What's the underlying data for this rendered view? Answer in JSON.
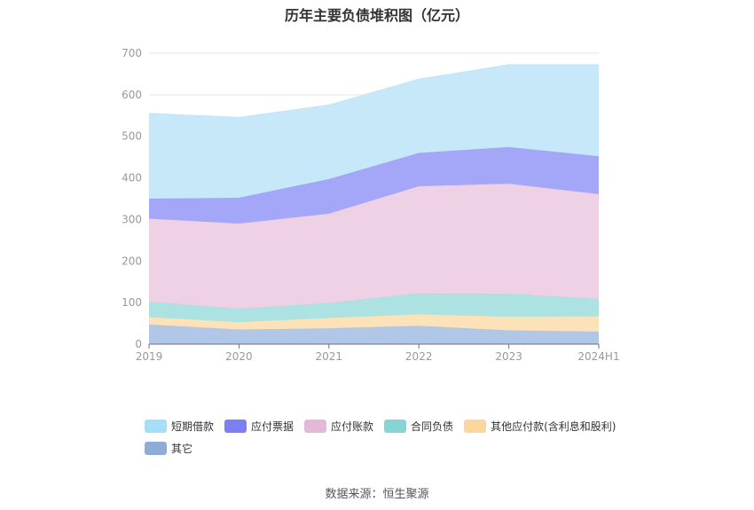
{
  "title": "历年主要负债堆积图（亿元）",
  "source": "数据来源：恒生聚源",
  "colors": {
    "短期借款": "#c3e7f9",
    "应付票据": "#9fa2f7",
    "应付账款": "#edcfe4",
    "合同负债": "#a8e0df",
    "其他应付款(含利息和股利)": "#fbe0b4",
    "其它": "#adc4e6"
  },
  "legend_colors": {
    "短期借款": "#a6ddf7",
    "应付票据": "#7b7ff2",
    "应付账款": "#e6b8d8",
    "合同负债": "#86d4d3",
    "其他应付款(含利息和股利)": "#fbd69e",
    "其它": "#8fabd8"
  },
  "chart_data": {
    "type": "area",
    "stacked": true,
    "categories": [
      "2019",
      "2020",
      "2021",
      "2022",
      "2023",
      "2024H1"
    ],
    "ylim": [
      0,
      700
    ],
    "yticks": [
      0,
      100,
      200,
      300,
      400,
      500,
      600,
      700
    ],
    "grid": true,
    "legend_position": "bottom",
    "series": [
      {
        "name": "其它",
        "values": [
          47,
          35,
          38,
          44,
          33,
          30
        ]
      },
      {
        "name": "其他应付款(含利息和股利)",
        "values": [
          18,
          18,
          25,
          28,
          33,
          37
        ]
      },
      {
        "name": "合同负债",
        "values": [
          37,
          32,
          36,
          50,
          55,
          42
        ]
      },
      {
        "name": "应付账款",
        "values": [
          200,
          205,
          215,
          258,
          265,
          252
        ]
      },
      {
        "name": "应付票据",
        "values": [
          48,
          62,
          83,
          80,
          88,
          91
        ]
      },
      {
        "name": "短期借款",
        "values": [
          205,
          193,
          178,
          177,
          198,
          220
        ]
      }
    ],
    "legend_order": [
      "短期借款",
      "应付票据",
      "应付账款",
      "合同负债",
      "其他应付款(含利息和股利)",
      "其它"
    ]
  }
}
